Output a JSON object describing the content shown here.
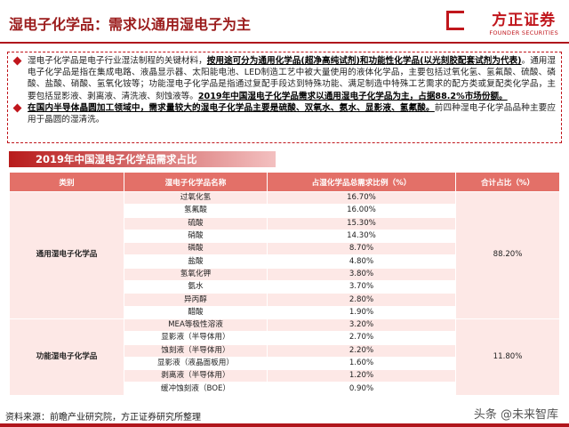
{
  "header": {
    "title": "湿电子化学品：需求以通用湿电子为主",
    "logo": "方正证券",
    "logo_en": "FOUNDER SECURITIES"
  },
  "bullets": [
    [
      {
        "text": "湿电子化学品是电子行业湿法制程的关键材料，",
        "bold": false
      },
      {
        "text": "按用途可分为通用化学品(超净高纯试剂)和功能性化学品(以光刻胶配套试剂为代表)",
        "bold": true
      },
      {
        "text": "。通用湿电子化学品是指在集成电路、液晶显示器、太阳能电池、LED制造工艺中被大量使用的液体化学品，主要包括过氧化氢、氢氟酸、硫酸、磷酸、盐酸、硝酸、氢氧化铵等；功能湿电子化学品是指通过复配手段达到特殊功能、满足制造中特殊工艺需求的配方类或复配类化学品，主要包括显影液、剥离液、清洗液、刻蚀液等。",
        "bold": false
      },
      {
        "text": "2019年中国湿电子化学品需求以通用湿电子化学品为主，占据88.2%市场份额。",
        "bold": true
      }
    ],
    [
      {
        "text": "在国内半导体晶圆加工领域中，需求量较大的湿电子化学品主要是硫酸、双氧水、氨水、显影液、氢氟酸。",
        "bold": true
      },
      {
        "text": "前四种湿电子化学品品种主要应用于晶圆的湿清洗。",
        "bold": false
      }
    ]
  ],
  "table": {
    "title": "2019年中国湿电子化学品需求占比",
    "columns": [
      "类别",
      "湿电子化学品名称",
      "占湿化学品总需求比例（%）",
      "合计占比（%）"
    ],
    "groups": [
      {
        "category": "通用湿电子化学品",
        "total": "88.20%",
        "items": [
          {
            "name": "过氧化氢",
            "share": "16.70%"
          },
          {
            "name": "氢氟酸",
            "share": "16.00%"
          },
          {
            "name": "硫酸",
            "share": "15.30%"
          },
          {
            "name": "硝酸",
            "share": "14.30%"
          },
          {
            "name": "磷酸",
            "share": "8.70%"
          },
          {
            "name": "盐酸",
            "share": "4.80%"
          },
          {
            "name": "氢氧化钾",
            "share": "3.80%"
          },
          {
            "name": "氨水",
            "share": "3.70%"
          },
          {
            "name": "异丙醇",
            "share": "2.80%"
          },
          {
            "name": "醋酸",
            "share": "1.90%"
          }
        ]
      },
      {
        "category": "功能湿电子化学品",
        "total": "11.80%",
        "items": [
          {
            "name": "MEA等极性溶液",
            "share": "3.20%"
          },
          {
            "name": "显影液（半导体用）",
            "share": "2.70%"
          },
          {
            "name": "蚀刻液（半导体用）",
            "share": "2.20%"
          },
          {
            "name": "显影液（液晶面板用）",
            "share": "1.60%"
          },
          {
            "name": "剥离液（半导体用）",
            "share": "1.20%"
          },
          {
            "name": "缓冲蚀刻液（BOE）",
            "share": "0.90%"
          }
        ]
      }
    ]
  },
  "footer": {
    "source": "资料来源：前瞻产业研究院，方正证券研究所整理",
    "watermark": "头条 @未来智库"
  }
}
